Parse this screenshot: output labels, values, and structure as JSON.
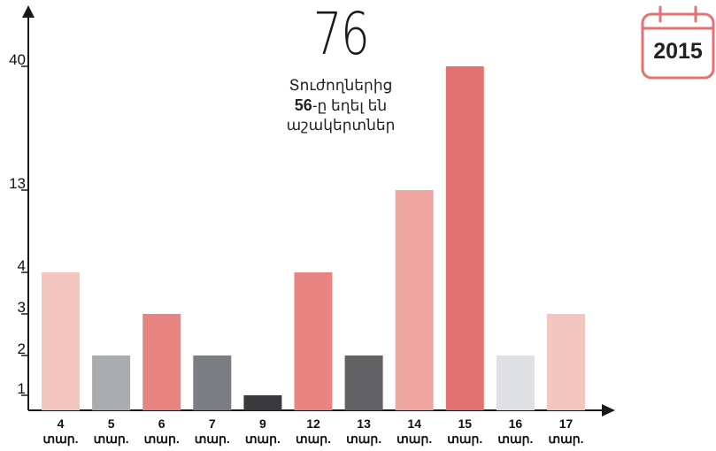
{
  "headline": {
    "number": "76",
    "line1": "Տուժողներից",
    "line2_bold": "56",
    "line2_rest": "-ը եղել են",
    "line3": "աշակերտներ"
  },
  "badge": {
    "year": "2015",
    "icon": "calendar-icon"
  },
  "chart_data": {
    "type": "bar",
    "title": "",
    "xlabel": "",
    "ylabel": "",
    "categories": [
      "4",
      "5",
      "6",
      "7",
      "9",
      "12",
      "13",
      "14",
      "15",
      "16",
      "17"
    ],
    "category_unit": "տար.",
    "values": [
      4,
      2,
      3,
      2,
      1,
      4,
      2,
      13,
      40,
      2,
      3
    ],
    "bar_colors": [
      "#f4c6c0",
      "#a9abaf",
      "#e88583",
      "#7c7d82",
      "#3a3a3c",
      "#e88583",
      "#626265",
      "#eea49f",
      "#e57272",
      "#dfe0e3",
      "#f4c6c0"
    ],
    "y_ticks": [
      1,
      2,
      3,
      4,
      13,
      40
    ],
    "y_scale": "non-linear (broken axis)",
    "grid": false,
    "legend": "none"
  },
  "colors": {
    "axis": "#1a1a1a",
    "accent": "#e57272"
  }
}
